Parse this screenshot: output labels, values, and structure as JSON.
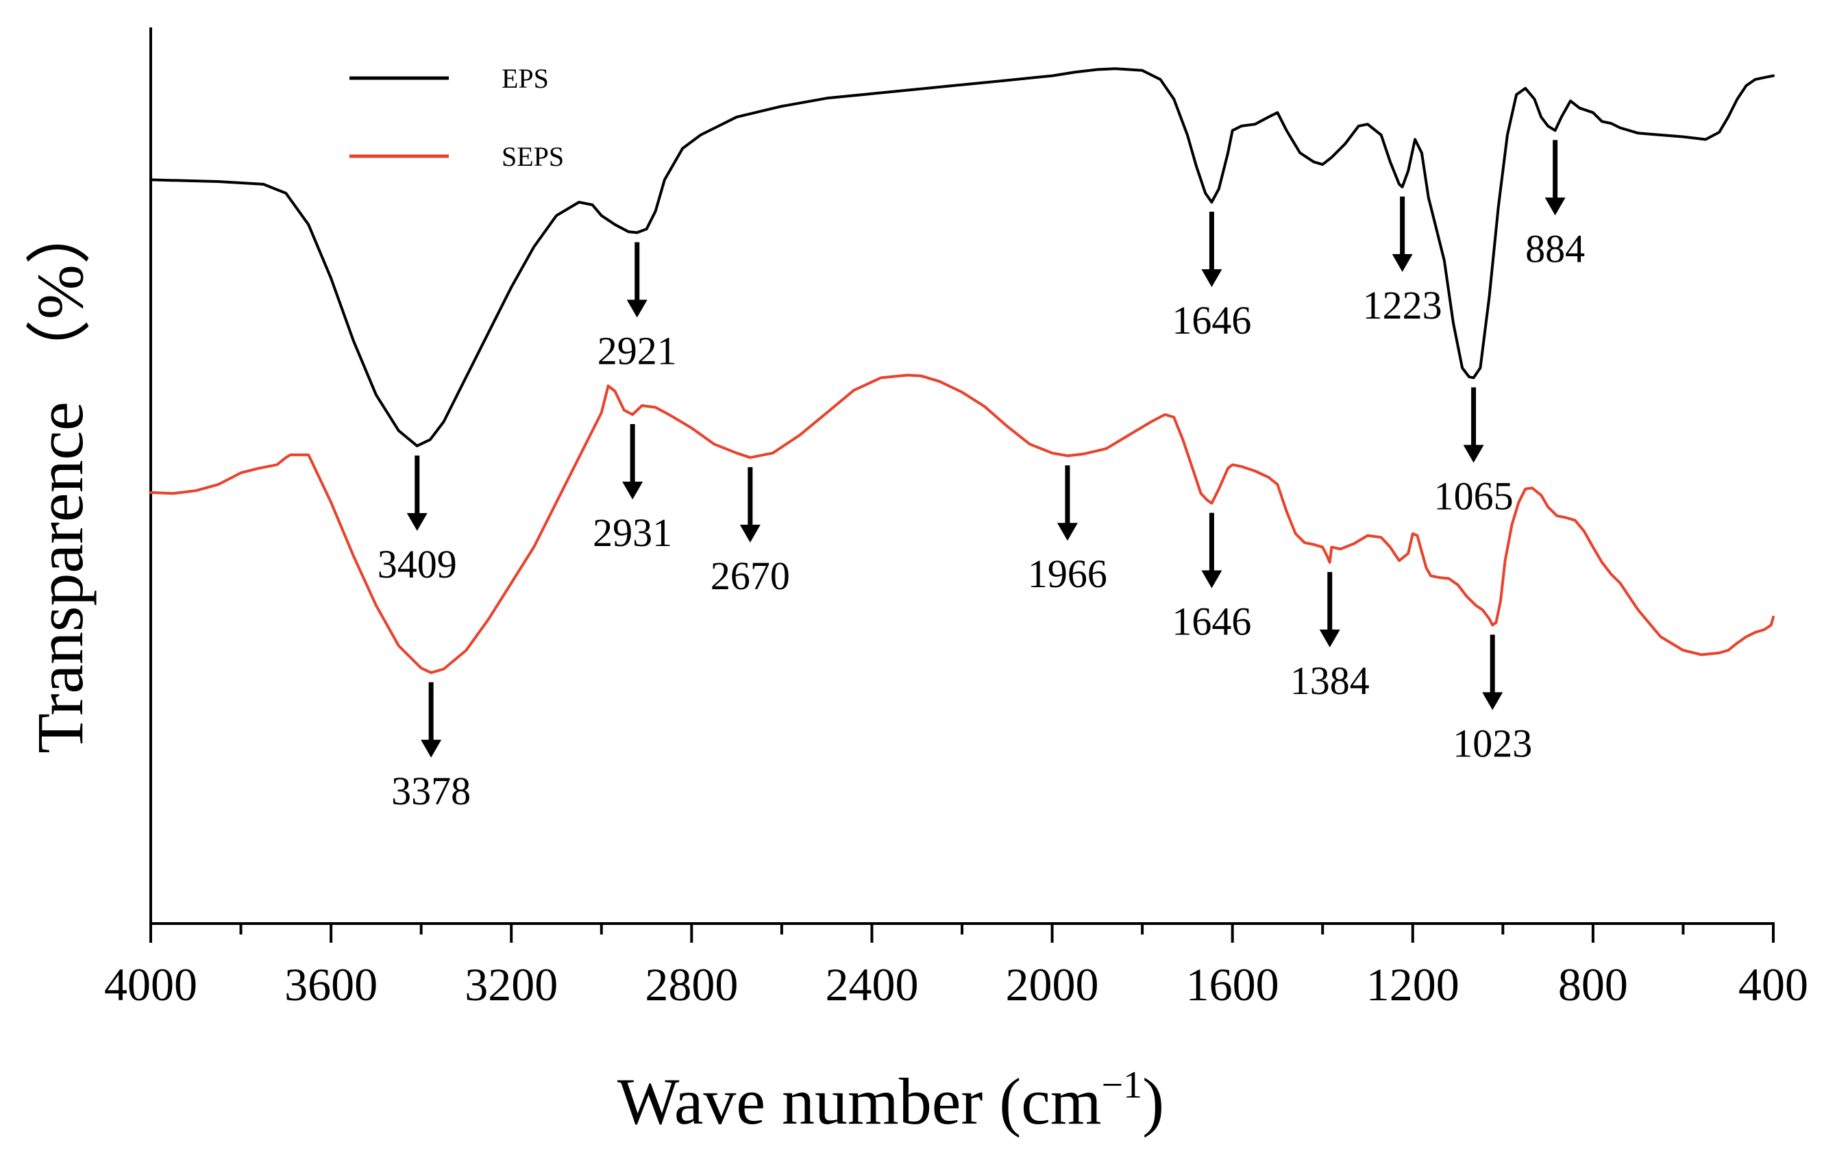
{
  "chart_data": {
    "type": "line",
    "title": "",
    "xlabel": "Wave number (cm",
    "xlabel_superscript": "−1",
    "xlabel_close": ")",
    "ylabel": "Transparence  （%）",
    "xlim": [
      4000,
      400
    ],
    "x_reversed": true,
    "x_ticks": [
      {
        "value": 4000,
        "label": "4000"
      },
      {
        "value": 3600,
        "label": "3600"
      },
      {
        "value": 3200,
        "label": "3200"
      },
      {
        "value": 2800,
        "label": "2800"
      },
      {
        "value": 2400,
        "label": "2400"
      },
      {
        "value": 2000,
        "label": "2000"
      },
      {
        "value": 1600,
        "label": "1600"
      },
      {
        "value": 1200,
        "label": "1200"
      },
      {
        "value": 800,
        "label": "800"
      },
      {
        "value": 400,
        "label": "400"
      }
    ],
    "minor_x_ticks": [
      3800,
      3400,
      3000,
      2600,
      2200,
      1800,
      1400,
      1000,
      600
    ],
    "y_units": "relative transmittance (0 = bottom of plot, 100 = top of plot)",
    "ylim": [
      0,
      100
    ],
    "legend": [
      {
        "name": "EPS",
        "color": "#000000"
      },
      {
        "name": "SEPS",
        "color": "#e8432d"
      }
    ],
    "series": [
      {
        "name": "EPS",
        "color": "#000000",
        "x": [
          4000,
          3850,
          3750,
          3700,
          3650,
          3600,
          3550,
          3500,
          3450,
          3409,
          3380,
          3350,
          3300,
          3250,
          3200,
          3150,
          3100,
          3050,
          3020,
          3000,
          2970,
          2940,
          2921,
          2900,
          2880,
          2860,
          2820,
          2780,
          2700,
          2600,
          2500,
          2400,
          2300,
          2200,
          2100,
          2000,
          1950,
          1900,
          1860,
          1800,
          1760,
          1730,
          1700,
          1680,
          1660,
          1646,
          1630,
          1610,
          1600,
          1580,
          1550,
          1520,
          1500,
          1480,
          1450,
          1420,
          1400,
          1380,
          1350,
          1320,
          1300,
          1270,
          1250,
          1230,
          1223,
          1210,
          1195,
          1180,
          1165,
          1150,
          1130,
          1110,
          1090,
          1075,
          1065,
          1050,
          1030,
          1010,
          990,
          970,
          950,
          930,
          915,
          900,
          884,
          870,
          850,
          830,
          800,
          780,
          760,
          740,
          700,
          650,
          600,
          550,
          520,
          500,
          480,
          460,
          440,
          420,
          400
        ],
        "y": [
          83,
          82.8,
          82.5,
          81.5,
          78,
          72,
          65,
          59,
          55,
          53.3,
          54,
          56,
          61,
          66,
          71,
          75.5,
          79,
          80.5,
          80.2,
          79,
          78,
          77.2,
          77.1,
          77.5,
          79.5,
          83,
          86.5,
          88,
          90,
          91.2,
          92.1,
          92.6,
          93.1,
          93.6,
          94.1,
          94.6,
          95,
          95.3,
          95.4,
          95.2,
          94.2,
          92,
          88,
          84.5,
          81.5,
          80.5,
          82,
          86,
          88.5,
          89,
          89.2,
          90,
          90.5,
          88.5,
          86,
          85,
          84.7,
          85.5,
          87,
          89,
          89.2,
          88,
          85,
          82.5,
          82.2,
          84,
          87.5,
          86,
          81,
          78,
          74,
          67,
          62,
          61,
          60.9,
          62,
          70,
          80,
          88,
          92.5,
          93.2,
          92,
          90,
          89,
          88.5,
          90,
          91.8,
          91,
          90.5,
          89.5,
          89.3,
          88.8,
          88.2,
          88,
          87.8,
          87.5,
          88.3,
          90,
          92,
          93.5,
          94.2,
          94.4,
          94.6
        ]
      },
      {
        "name": "SEPS",
        "color": "#e8432d",
        "x": [
          4000,
          3950,
          3900,
          3850,
          3800,
          3760,
          3720,
          3700,
          3690,
          3650,
          3600,
          3550,
          3500,
          3450,
          3400,
          3378,
          3350,
          3300,
          3250,
          3200,
          3150,
          3100,
          3050,
          3000,
          2985,
          2970,
          2950,
          2931,
          2910,
          2880,
          2850,
          2800,
          2750,
          2700,
          2670,
          2620,
          2560,
          2500,
          2440,
          2380,
          2320,
          2290,
          2250,
          2200,
          2150,
          2100,
          2050,
          2000,
          1966,
          1930,
          1880,
          1830,
          1780,
          1750,
          1730,
          1710,
          1690,
          1670,
          1655,
          1646,
          1630,
          1610,
          1600,
          1580,
          1550,
          1520,
          1500,
          1480,
          1460,
          1440,
          1420,
          1400,
          1390,
          1384,
          1380,
          1360,
          1330,
          1300,
          1270,
          1250,
          1230,
          1210,
          1200,
          1190,
          1180,
          1170,
          1160,
          1140,
          1120,
          1100,
          1080,
          1060,
          1045,
          1030,
          1023,
          1015,
          1005,
          995,
          980,
          965,
          950,
          935,
          915,
          900,
          880,
          860,
          840,
          820,
          800,
          780,
          760,
          740,
          700,
          650,
          600,
          560,
          520,
          500,
          480,
          460,
          440,
          420,
          405,
          400
        ],
        "y": [
          48.1,
          48,
          48.3,
          49,
          50.3,
          50.8,
          51.2,
          52,
          52.3,
          52.3,
          47,
          41,
          35.5,
          31,
          28.5,
          28,
          28.4,
          30.5,
          34,
          38,
          42,
          47,
          52,
          57,
          60,
          59.4,
          57.3,
          56.8,
          57.8,
          57.6,
          56.8,
          55.3,
          53.5,
          52.5,
          52,
          52.5,
          54.5,
          57,
          59.5,
          60.9,
          61.2,
          61.1,
          60.5,
          59.3,
          57.7,
          55.5,
          53.5,
          52.5,
          52.2,
          52.4,
          53,
          54.5,
          56,
          56.8,
          56.5,
          54,
          51,
          48,
          47.2,
          46.9,
          48.5,
          50.8,
          51.2,
          51,
          50.5,
          49.8,
          49,
          46,
          43.5,
          42.5,
          42.3,
          42,
          41,
          40.3,
          42,
          41.8,
          42.4,
          43.3,
          43.1,
          42,
          40.5,
          41.3,
          43.5,
          43.3,
          41.5,
          39.7,
          38.8,
          38.6,
          38.5,
          37.8,
          36.5,
          35.5,
          35,
          34,
          33.3,
          33.6,
          36,
          40.5,
          44.5,
          47,
          48.5,
          48.6,
          47.8,
          46.5,
          45.5,
          45.3,
          45,
          43.8,
          42,
          40.3,
          39,
          38,
          35,
          32,
          30.5,
          30,
          30.2,
          30.5,
          31.3,
          32,
          32.5,
          32.8,
          33.3,
          34.2
        ]
      }
    ],
    "annotations": [
      {
        "series": "EPS",
        "x": 3409,
        "label": "3409"
      },
      {
        "series": "EPS",
        "x": 2921,
        "label": "2921"
      },
      {
        "series": "EPS",
        "x": 1646,
        "label": "1646"
      },
      {
        "series": "EPS",
        "x": 1223,
        "label": "1223"
      },
      {
        "series": "EPS",
        "x": 1065,
        "label": "1065"
      },
      {
        "series": "EPS",
        "x": 884,
        "label": "884"
      },
      {
        "series": "SEPS",
        "x": 3378,
        "label": "3378"
      },
      {
        "series": "SEPS",
        "x": 2931,
        "label": "2931"
      },
      {
        "series": "SEPS",
        "x": 2670,
        "label": "2670"
      },
      {
        "series": "SEPS",
        "x": 1966,
        "label": "1966"
      },
      {
        "series": "SEPS",
        "x": 1646,
        "label": "1646"
      },
      {
        "series": "SEPS",
        "x": 1384,
        "label": "1384"
      },
      {
        "series": "SEPS",
        "x": 1023,
        "label": "1023"
      }
    ]
  }
}
